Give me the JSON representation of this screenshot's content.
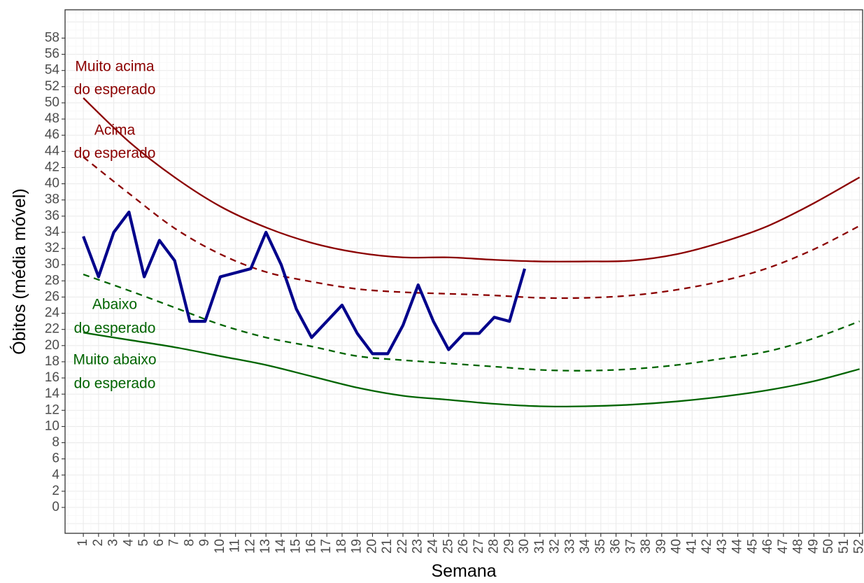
{
  "chart_data": {
    "type": "line",
    "xlabel": "Semana",
    "ylabel": "Óbitos (média móvel)",
    "xlim": [
      -0.2,
      52.2
    ],
    "ylim": [
      -3.2,
      61.5
    ],
    "grid": true,
    "x_ticks": [
      1,
      2,
      3,
      4,
      5,
      6,
      7,
      8,
      9,
      10,
      11,
      12,
      13,
      14,
      15,
      16,
      17,
      18,
      19,
      20,
      21,
      22,
      23,
      24,
      25,
      26,
      27,
      28,
      29,
      30,
      31,
      32,
      33,
      34,
      35,
      36,
      37,
      38,
      39,
      40,
      41,
      42,
      43,
      44,
      45,
      46,
      47,
      48,
      49,
      50,
      51,
      52
    ],
    "x_tick_labels": [
      "1",
      "2",
      "3",
      "4",
      "5",
      "6",
      "7",
      "8",
      "9",
      "10",
      "11",
      "12",
      "13",
      "14",
      "15",
      "16",
      "17",
      "18",
      "19",
      "20",
      "21",
      "22",
      "23",
      "24",
      "25",
      "26",
      "27",
      "28",
      "29",
      "30",
      "31",
      "32",
      "33",
      "34",
      "35",
      "36",
      "37",
      "38",
      "39",
      "40",
      "41",
      "42",
      "43",
      "44",
      "45",
      "46",
      "47",
      "48",
      "49",
      "50",
      "51",
      "52"
    ],
    "y_ticks": [
      0,
      2,
      4,
      6,
      8,
      10,
      12,
      14,
      16,
      18,
      20,
      22,
      24,
      26,
      28,
      30,
      32,
      34,
      36,
      38,
      40,
      42,
      44,
      46,
      48,
      50,
      52,
      54,
      56,
      58
    ],
    "y_tick_labels": [
      "0",
      "2",
      "4",
      "6",
      "8",
      "10",
      "12",
      "14",
      "16",
      "18",
      "20",
      "22",
      "24",
      "26",
      "28",
      "30",
      "32",
      "34",
      "36",
      "38",
      "40",
      "42",
      "44",
      "46",
      "48",
      "50",
      "52",
      "54",
      "56",
      "58"
    ],
    "series": [
      {
        "key": "observed",
        "color": "#00008B",
        "style": "solid",
        "x": [
          1,
          2,
          3,
          4,
          5,
          6,
          7,
          8,
          9,
          10,
          11,
          12,
          13,
          14,
          15,
          16,
          17,
          18,
          19,
          20,
          21,
          22,
          23,
          24,
          25,
          26,
          27,
          28,
          29,
          30
        ],
        "values": [
          33.5,
          28.5,
          34,
          36.5,
          28.5,
          33,
          30.5,
          23,
          23,
          28.5,
          29,
          29.5,
          34,
          30,
          24.5,
          21,
          23,
          25,
          21.5,
          19,
          19,
          22.5,
          27.5,
          23,
          19.5,
          21.5,
          21.5,
          23.5,
          23,
          29.5
        ]
      },
      {
        "key": "upper_very_high",
        "color": "#8B0000",
        "style": "solid",
        "x": [
          1,
          4,
          7,
          10,
          13,
          16,
          19,
          22,
          25,
          28,
          31,
          34,
          37,
          40,
          43,
          46,
          49,
          52
        ],
        "values": [
          50.6,
          45.2,
          40.8,
          37.2,
          34.6,
          32.7,
          31.5,
          30.9,
          30.9,
          30.6,
          30.4,
          30.4,
          30.5,
          31.3,
          32.8,
          34.8,
          37.6,
          40.8
        ]
      },
      {
        "key": "upper_high",
        "color": "#8B0000",
        "style": "dashed",
        "x": [
          1,
          4,
          7,
          10,
          13,
          16,
          19,
          22,
          25,
          28,
          31,
          34,
          37,
          40,
          43,
          46,
          49,
          52
        ],
        "values": [
          43.3,
          38.8,
          34.5,
          31.3,
          29.1,
          27.9,
          27.0,
          26.6,
          26.4,
          26.2,
          25.9,
          25.9,
          26.2,
          26.9,
          28.0,
          29.6,
          31.9,
          34.8
        ]
      },
      {
        "key": "lower_low",
        "color": "#006400",
        "style": "dashed",
        "x": [
          1,
          4,
          7,
          10,
          13,
          16,
          19,
          22,
          25,
          28,
          31,
          34,
          37,
          40,
          43,
          46,
          49,
          52
        ],
        "values": [
          28.8,
          26.8,
          24.7,
          22.6,
          21.0,
          19.9,
          18.7,
          18.2,
          17.8,
          17.4,
          17.0,
          16.9,
          17.1,
          17.6,
          18.4,
          19.3,
          20.9,
          23.0
        ]
      },
      {
        "key": "lower_very_low",
        "color": "#006400",
        "style": "solid",
        "x": [
          1,
          4,
          7,
          10,
          13,
          16,
          19,
          22,
          25,
          28,
          31,
          34,
          37,
          40,
          43,
          46,
          49,
          52
        ],
        "values": [
          21.6,
          20.7,
          19.8,
          18.7,
          17.6,
          16.2,
          14.8,
          13.8,
          13.3,
          12.8,
          12.5,
          12.5,
          12.7,
          13.1,
          13.7,
          14.5,
          15.6,
          17.1
        ]
      }
    ],
    "annotations": [
      {
        "key": "very_high",
        "lines": [
          "Muito acima",
          "do esperado"
        ],
        "color": "#8B0000"
      },
      {
        "key": "high",
        "lines": [
          "Acima",
          "do esperado"
        ],
        "color": "#8B0000"
      },
      {
        "key": "low",
        "lines": [
          "Abaixo",
          "do esperado"
        ],
        "color": "#006400"
      },
      {
        "key": "very_low",
        "lines": [
          "Muito abaixo",
          "do esperado"
        ],
        "color": "#006400"
      }
    ]
  }
}
